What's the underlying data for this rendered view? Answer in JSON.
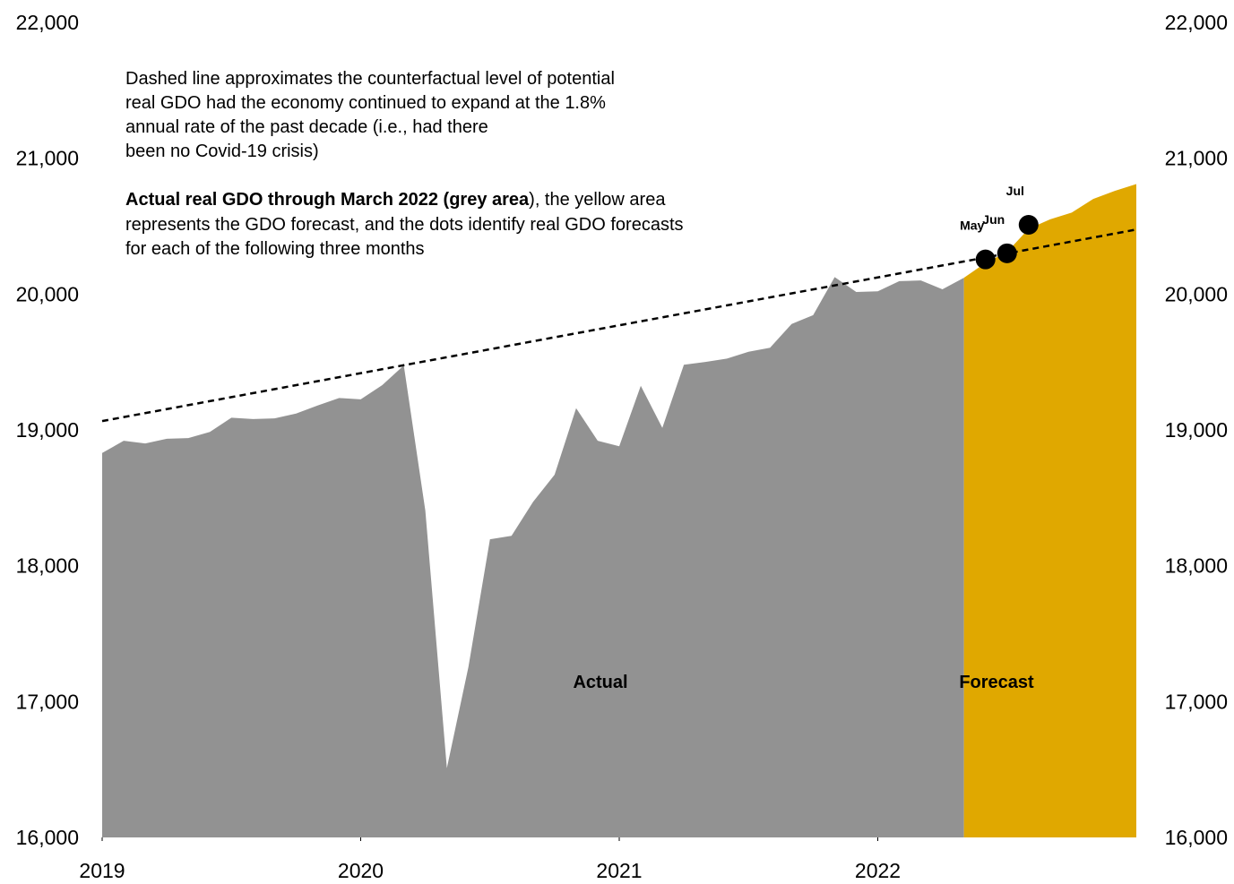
{
  "chart_data": {
    "type": "area",
    "annotations": [
      {
        "lines": [
          "Dashed line approximates the counterfactual  level of potential",
          "real GDO had the economy continued to expand at the 1.8%",
          "annual rate of the past decade (i.e., had there",
          "been no Covid-19 crisis)"
        ]
      },
      {
        "bold": "Actual real GDO through March 2022 (grey area",
        "lines": [
          "), the yellow area",
          "represents the GDO forecast, and the dots identify real GDO forecasts",
          "for each of the following three months"
        ]
      }
    ],
    "xlim": [
      2019,
      2023
    ],
    "xticks": [
      2019,
      2020,
      2021,
      2022
    ],
    "ylim": [
      16000,
      22000
    ],
    "yticks": [
      {
        "value": 16000,
        "label": "16,000"
      },
      {
        "value": 17000,
        "label": "17,000"
      },
      {
        "value": 18000,
        "label": "18,000"
      },
      {
        "value": 19000,
        "label": "19,000"
      },
      {
        "value": 20000,
        "label": "20,000"
      },
      {
        "value": 21000,
        "label": "21,000"
      },
      {
        "value": 22000,
        "label": "22,000"
      }
    ],
    "series": [
      {
        "name": "Actual",
        "color": "#929292",
        "x": [
          2019,
          2019.0833,
          2019.1667,
          2019.25,
          2019.3333,
          2019.4167,
          2019.5,
          2019.5833,
          2019.6667,
          2019.75,
          2019.8333,
          2019.9167,
          2020,
          2020.0833,
          2020.1667,
          2020.25,
          2020.3333,
          2020.4167,
          2020.5,
          2020.5833,
          2020.6667,
          2020.75,
          2020.8333,
          2020.9167,
          2021,
          2021.0833,
          2021.1667,
          2021.25,
          2021.3333,
          2021.4167,
          2021.5,
          2021.5833,
          2021.6667,
          2021.75,
          2021.8333,
          2021.9167,
          2022,
          2022.0833,
          2022.1667,
          2022.25,
          2022.3333
        ],
        "values": [
          18830,
          18920,
          18900,
          18935,
          18940,
          18985,
          19090,
          19080,
          19085,
          19120,
          19180,
          19235,
          19225,
          19330,
          19475,
          18405,
          16510,
          17255,
          18195,
          18220,
          18470,
          18670,
          19160,
          18920,
          18880,
          19325,
          19015,
          19480,
          19500,
          19525,
          19575,
          19605,
          19780,
          19845,
          20125,
          20015,
          20020,
          20095,
          20100,
          20035,
          20120
        ]
      },
      {
        "name": "Forecast",
        "color": "#e0a800",
        "x": [
          2022.3333,
          2022.4167,
          2022.5,
          2022.5833,
          2022.6667,
          2022.75,
          2022.8333,
          2022.9167,
          2023
        ],
        "values": [
          20120,
          20230,
          20310,
          20480,
          20550,
          20600,
          20700,
          20760,
          20810
        ]
      }
    ],
    "counterfactual": {
      "x": [
        2019,
        2023
      ],
      "values": [
        19065,
        20475
      ],
      "color": "#000000"
    },
    "points": {
      "labels": [
        "May",
        "Jun",
        "Jul"
      ],
      "x": [
        2022.4167,
        2022.5,
        2022.5833
      ],
      "values": [
        20255,
        20300,
        20510
      ],
      "color": "#000000"
    }
  }
}
